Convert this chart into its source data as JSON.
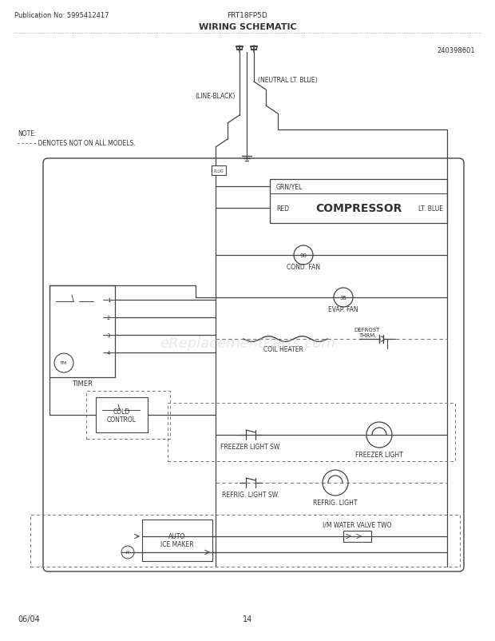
{
  "title": "WIRING SCHEMATIC",
  "subtitle": "FRT18FP5D",
  "pub_no": "Publication No: 5995412417",
  "doc_no": "240398601",
  "page": "14",
  "date": "06/04",
  "bg_color": "#ffffff",
  "line_color": "#444444",
  "text_color": "#333333",
  "dashed_color": "#777777",
  "note_line1": "NOTE:",
  "note_line2": "- - - - - DENOTES NOT ON ALL MODELS.",
  "line_black_label": "(LINE-BLACK)",
  "neutral_label": "(NEUTRAL LT. BLUE)",
  "grn_yel_label": "GRN/YEL",
  "red_label": "RED",
  "compressor_label": "COMPRESSOR",
  "lt_blue_label": "LT. BLUE",
  "cond_fan_label": "COND. FAN",
  "cond_fan_val": "90",
  "evap_fan_label": "EVAP. FAN",
  "evap_fan_val": "35",
  "coil_heater_label": "COIL HEATER",
  "defrost_label1": "DEFROST",
  "defrost_label2": "THRM.",
  "timer_label": "TIMER",
  "cold_control_label1": "COLD",
  "cold_control_label2": "CONTROL",
  "freezer_light_sw_label": "FREEZER LIGHT SW.",
  "freezer_light_label": "FREEZER LIGHT",
  "refrig_light_sw_label": "REFRIG. LIGHT SW.",
  "refrig_light_label": "REFRIG. LIGHT",
  "auto_ice_maker_label1": "AUTO",
  "auto_ice_maker_label2": "ICE MAKER",
  "water_valve_label": "I/M WATER VALVE TWO",
  "watermark": "eReplacementParts.com"
}
